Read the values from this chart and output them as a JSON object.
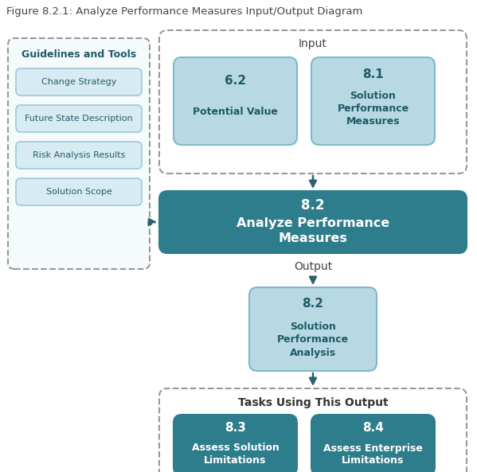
{
  "title": "Figure 8.2.1: Analyze Performance Measures Input/Output Diagram",
  "title_fontsize": 9.5,
  "title_color": "#444444",
  "bg_color": "#ffffff",
  "colors": {
    "dark_teal": "#2e7d8c",
    "lighter_blue": "#b8d9e3",
    "white": "#ffffff",
    "white_text": "#ffffff",
    "dark_teal_text": "#1e5a68",
    "arrow": "#2e6070",
    "border_gray": "#999999",
    "gl_bg": "#f5fafc",
    "item_bg": "#d6ebf2",
    "item_border": "#a0c8d8"
  },
  "guidelines_box": {
    "label": "Guidelines and Tools",
    "items": [
      "Change Strategy",
      "Future State Description",
      "Risk Analysis Results",
      "Solution Scope"
    ]
  },
  "input_items": [
    {
      "number": "6.2",
      "text": "Potential Value"
    },
    {
      "number": "8.1",
      "text": "Solution\nPerformance\nMeasures"
    }
  ],
  "main_box": {
    "number": "8.2",
    "text": "Analyze Performance\nMeasures"
  },
  "output_label": "Output",
  "output_box": {
    "number": "8.2",
    "text": "Solution\nPerformance\nAnalysis"
  },
  "tasks_label": "Tasks Using This Output",
  "tasks_items": [
    {
      "number": "8.3",
      "text": "Assess Solution\nLimitations"
    },
    {
      "number": "8.4",
      "text": "Assess Enterprise\nLimitations"
    }
  ]
}
